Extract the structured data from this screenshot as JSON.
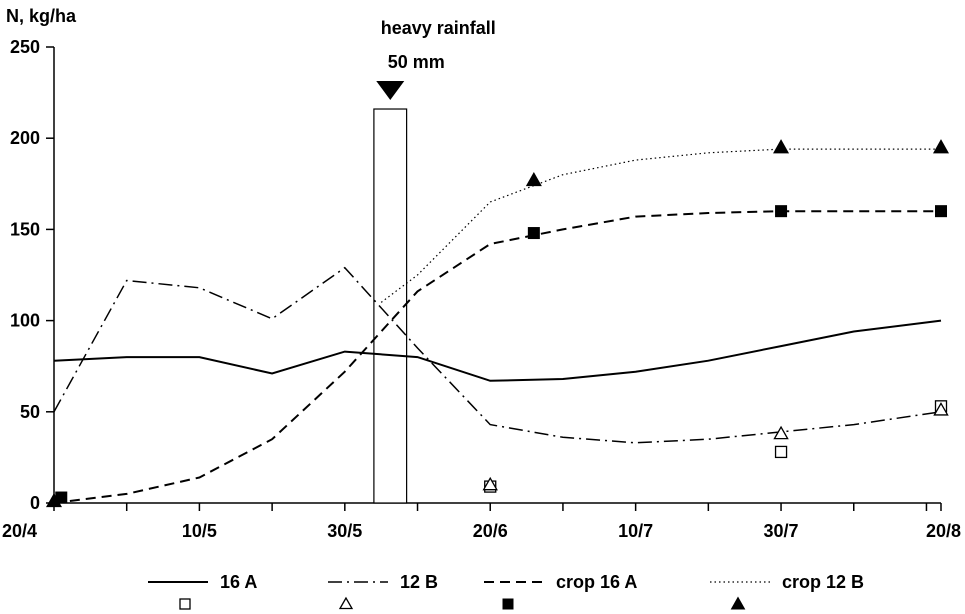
{
  "chart_data": {
    "type": "line",
    "ylabel": "N, kg/ha",
    "xlabel": "",
    "ylim": [
      0,
      250
    ],
    "yticks": [
      "0",
      "50",
      "100",
      "150",
      "200",
      "250"
    ],
    "xticks": [
      "20/4",
      "10/5",
      "30/5",
      "20/6",
      "10/7",
      "30/7",
      "20/8"
    ],
    "x_domain_days": [
      0,
      122
    ],
    "annotation": {
      "label_top": "heavy rainfall",
      "label_bottom": "50 mm",
      "rainfall_x_days": [
        44,
        48.5
      ],
      "rainfall_value": 216
    },
    "series": [
      {
        "name": "16 A",
        "style": "solid",
        "line": [
          [
            0,
            78
          ],
          [
            10,
            80
          ],
          [
            20,
            80
          ],
          [
            30,
            71
          ],
          [
            40,
            83
          ],
          [
            50,
            80
          ],
          [
            60,
            67
          ],
          [
            70,
            68
          ],
          [
            80,
            72
          ],
          [
            90,
            78
          ],
          [
            100,
            86
          ],
          [
            110,
            94
          ],
          [
            122,
            100
          ]
        ],
        "points": [
          [
            60,
            9
          ],
          [
            100,
            28
          ],
          [
            122,
            53
          ]
        ],
        "marker": "open-square"
      },
      {
        "name": "12 B",
        "style": "dash-dot",
        "line": [
          [
            0,
            50
          ],
          [
            10,
            122
          ],
          [
            20,
            118
          ],
          [
            30,
            101
          ],
          [
            40,
            129
          ],
          [
            50,
            85
          ],
          [
            60,
            43
          ],
          [
            70,
            36
          ],
          [
            80,
            33
          ],
          [
            90,
            35
          ],
          [
            100,
            39
          ],
          [
            110,
            43
          ],
          [
            122,
            50
          ]
        ],
        "points": [
          [
            60,
            10
          ],
          [
            100,
            38
          ],
          [
            122,
            51
          ]
        ],
        "marker": "open-triangle"
      },
      {
        "name": "crop 16 A",
        "style": "dashed",
        "line": [
          [
            0,
            0
          ],
          [
            10,
            5
          ],
          [
            20,
            14
          ],
          [
            30,
            35
          ],
          [
            40,
            72
          ],
          [
            50,
            116
          ],
          [
            60,
            142
          ],
          [
            70,
            150
          ],
          [
            80,
            157
          ],
          [
            90,
            159
          ],
          [
            100,
            160
          ],
          [
            110,
            160
          ],
          [
            122,
            160
          ]
        ],
        "points": [
          [
            1,
            3
          ],
          [
            66,
            148
          ],
          [
            100,
            160
          ],
          [
            122,
            160
          ]
        ],
        "marker": "filled-square"
      },
      {
        "name": "crop 12 B",
        "style": "dotted",
        "line": [
          [
            45,
            110
          ],
          [
            50,
            125
          ],
          [
            55,
            145
          ],
          [
            60,
            165
          ],
          [
            70,
            180
          ],
          [
            80,
            188
          ],
          [
            90,
            192
          ],
          [
            100,
            194
          ],
          [
            110,
            194
          ],
          [
            122,
            194
          ]
        ],
        "points": [
          [
            0,
            1
          ],
          [
            66,
            177
          ],
          [
            100,
            195
          ],
          [
            122,
            195
          ]
        ],
        "marker": "filled-triangle"
      }
    ],
    "legend_position": "bottom"
  }
}
